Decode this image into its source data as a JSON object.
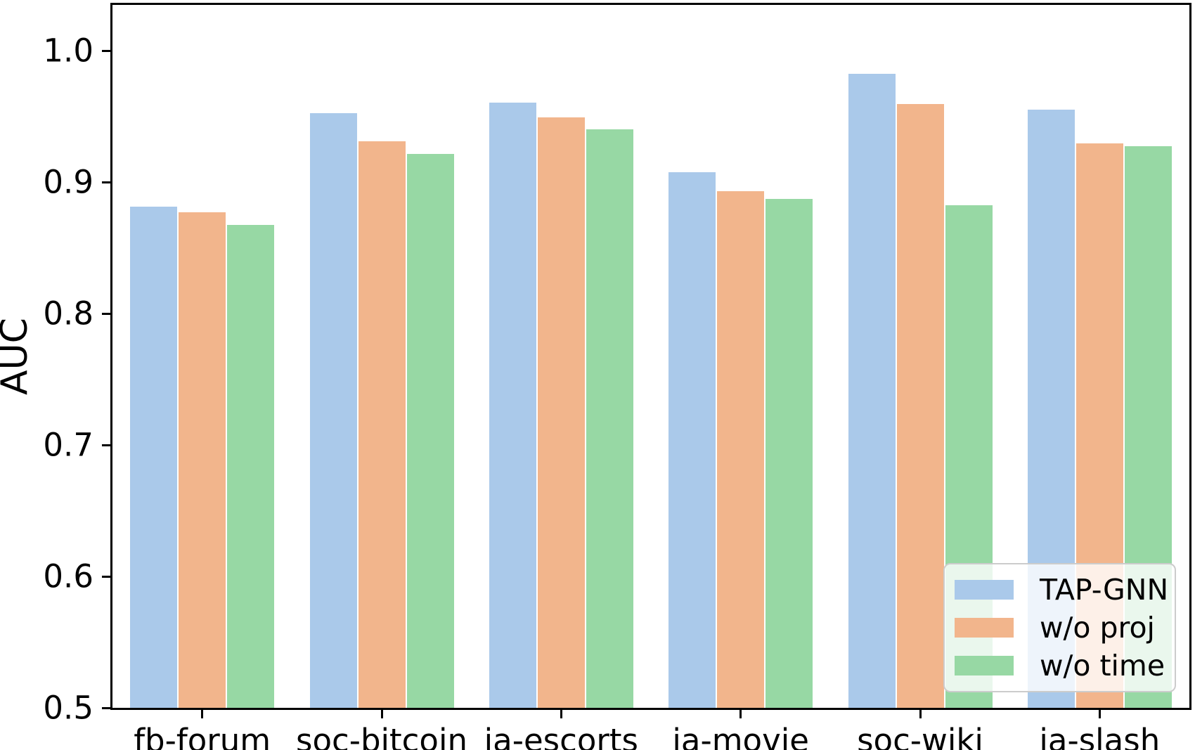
{
  "chart_data": {
    "type": "bar",
    "title": "",
    "xlabel": "",
    "ylabel": "AUC",
    "categories": [
      "fb-forum",
      "soc-bitcoin",
      "ia-escorts",
      "ia-movie",
      "soc-wiki",
      "ia-slash"
    ],
    "series": [
      {
        "name": "TAP-GNN",
        "color": "#aac9ea",
        "values": [
          0.882,
          0.953,
          0.961,
          0.908,
          0.983,
          0.956
        ]
      },
      {
        "name": "w/o proj",
        "color": "#f2b58c",
        "values": [
          0.878,
          0.932,
          0.95,
          0.894,
          0.96,
          0.93
        ]
      },
      {
        "name": "w/o time",
        "color": "#97d8a4",
        "values": [
          0.868,
          0.922,
          0.941,
          0.888,
          0.883,
          0.928
        ]
      }
    ],
    "ylim": [
      0.5,
      1.035
    ],
    "yticks": [
      "0.5",
      "0.6",
      "0.7",
      "0.8",
      "0.9",
      "1.0"
    ],
    "grid": false,
    "legend": {
      "position": "lower right",
      "entries": [
        "TAP-GNN",
        "w/o proj",
        "w/o time"
      ]
    },
    "colors": {
      "background": "#ffffff",
      "spine": "#000000",
      "legend_border": "#cccccc"
    }
  }
}
